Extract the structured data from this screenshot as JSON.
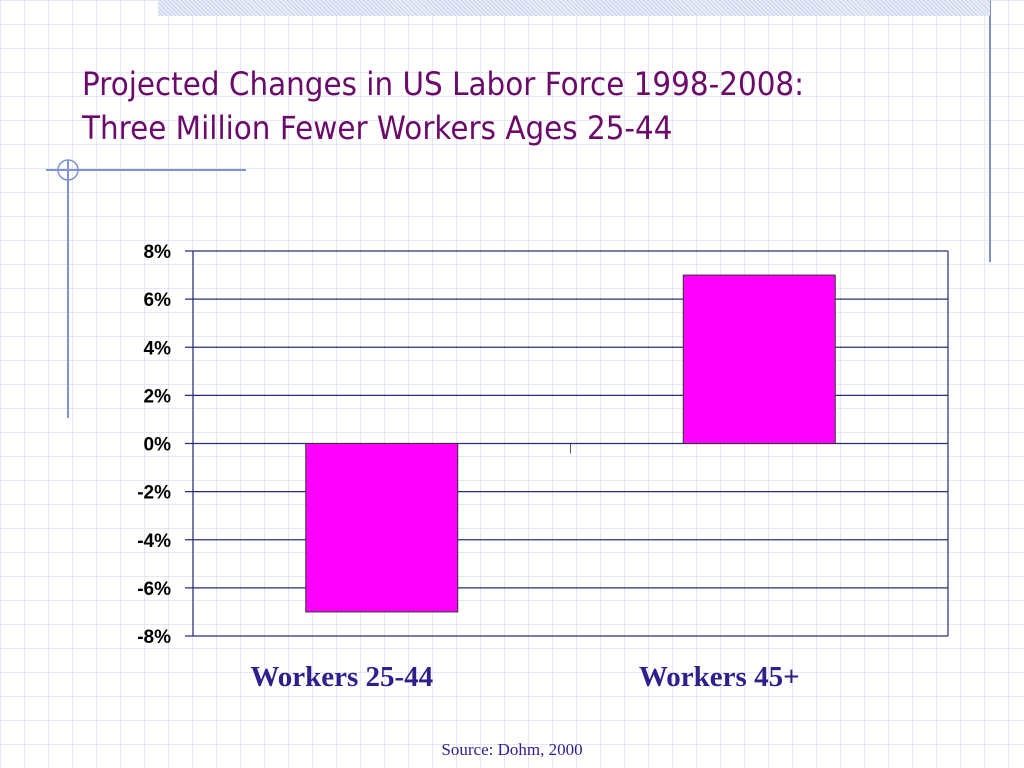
{
  "slide": {
    "title": "Projected Changes in US Labor Force 1998-2008: Three Million Fewer Workers Ages 25-44",
    "source": "Source: Dohm, 2000"
  },
  "colors": {
    "title": "#6b0a6b",
    "bar": "#ff00ff",
    "category_label": "#2e1f8c",
    "gridline": "#2b2b7a",
    "accent_line": "#7f93cf"
  },
  "chart_data": {
    "type": "bar",
    "title": "",
    "xlabel": "",
    "ylabel": "",
    "categories": [
      "Workers 25-44",
      "Workers 45+"
    ],
    "values": [
      -7,
      7
    ],
    "ylim": [
      -8,
      8
    ],
    "yticks": [
      8,
      6,
      4,
      2,
      0,
      -2,
      -4,
      -6,
      -8
    ],
    "ytick_labels": [
      "8%",
      "6%",
      "4%",
      "2%",
      "0%",
      "-2%",
      "-4%",
      "-6%",
      "-8%"
    ],
    "grid": true,
    "legend": "none"
  }
}
